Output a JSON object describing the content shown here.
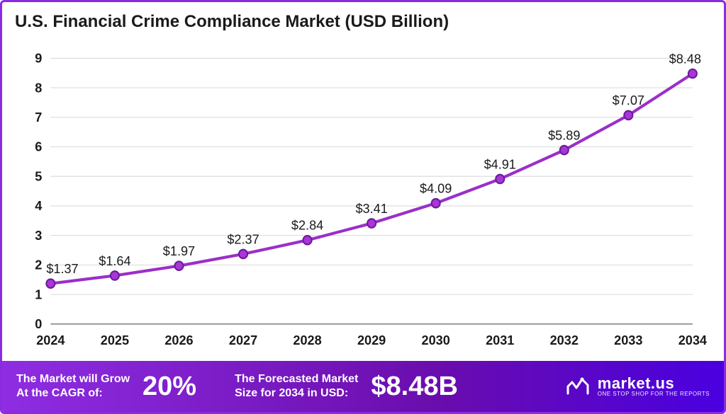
{
  "title": "U.S. Financial Crime Compliance Market (USD Billion)",
  "chart": {
    "type": "line",
    "years": [
      "2024",
      "2025",
      "2026",
      "2027",
      "2028",
      "2029",
      "2030",
      "2031",
      "2032",
      "2033",
      "2034"
    ],
    "values": [
      1.37,
      1.64,
      1.97,
      2.37,
      2.84,
      3.41,
      4.09,
      4.91,
      5.89,
      7.07,
      8.48
    ],
    "value_labels": [
      "$1.37",
      "$1.64",
      "$1.97",
      "$2.37",
      "$2.84",
      "$3.41",
      "$4.09",
      "$4.91",
      "$5.89",
      "$7.07",
      "$8.48"
    ],
    "ylim": [
      0,
      9
    ],
    "ytick_step": 1,
    "line_color": "#9b2fc9",
    "marker_fill": "#a936d6",
    "marker_stroke": "#6a1b9a",
    "marker_radius": 6,
    "line_width": 4,
    "grid_color": "#d9d9d9",
    "baseline_color": "#888888",
    "axis_font_size": 18,
    "axis_font_weight": 700,
    "xtick_font_weight": 800,
    "value_label_font_size": 18,
    "background_color": "#ffffff"
  },
  "footer": {
    "cagr_label": "The Market will Grow\nAt the CAGR of:",
    "cagr_value": "20%",
    "forecast_label": "The Forecasted Market\nSize for 2034 in USD:",
    "forecast_value": "$8.48B",
    "brand_name": "market.us",
    "brand_tag": "ONE STOP SHOP FOR THE REPORTS",
    "bg_gradient_from": "#8e2de2",
    "bg_gradient_to": "#4a00e0",
    "text_color": "#ffffff"
  },
  "frame_border_color": "#8a2be2"
}
